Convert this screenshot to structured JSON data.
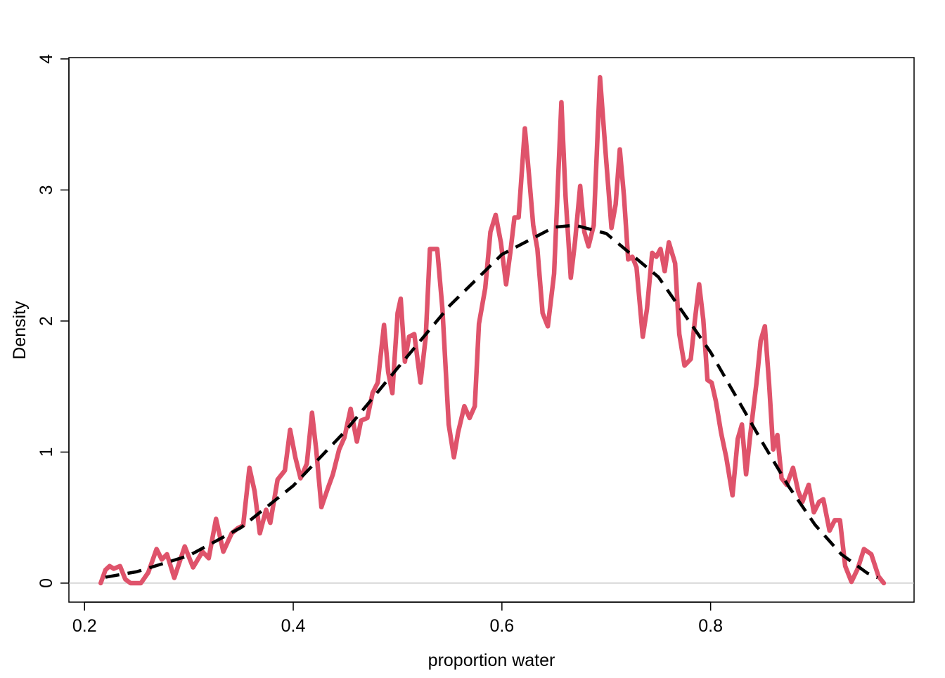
{
  "chart_data": {
    "type": "line",
    "xlabel": "proportion water",
    "ylabel": "Density",
    "xlim": [
      0.185,
      0.995
    ],
    "ylim": [
      -0.145,
      4.01
    ],
    "xticks": [
      0.2,
      0.4,
      0.6,
      0.8
    ],
    "yticks": [
      0,
      1,
      2,
      3,
      4
    ],
    "zero_line": true,
    "series": [
      {
        "color": "#DF536B",
        "dashed": false,
        "x": [
          0.2155,
          0.22,
          0.224,
          0.228,
          0.234,
          0.239,
          0.244,
          0.254,
          0.261,
          0.269,
          0.274,
          0.279,
          0.286,
          0.296,
          0.304,
          0.313,
          0.319,
          0.326,
          0.333,
          0.341,
          0.347,
          0.352,
          0.358,
          0.363,
          0.368,
          0.374,
          0.378,
          0.385,
          0.392,
          0.397,
          0.402,
          0.407,
          0.413,
          0.418,
          0.422,
          0.427,
          0.433,
          0.438,
          0.444,
          0.449,
          0.455,
          0.461,
          0.465,
          0.471,
          0.476,
          0.481,
          0.487,
          0.491,
          0.495,
          0.5,
          0.503,
          0.507,
          0.511,
          0.516,
          0.522,
          0.527,
          0.531,
          0.538,
          0.543,
          0.549,
          0.554,
          0.558,
          0.564,
          0.569,
          0.574,
          0.578,
          0.584,
          0.589,
          0.594,
          0.599,
          0.604,
          0.608,
          0.612,
          0.616,
          0.622,
          0.626,
          0.63,
          0.634,
          0.639,
          0.644,
          0.65,
          0.657,
          0.661,
          0.666,
          0.67,
          0.675,
          0.679,
          0.683,
          0.688,
          0.694,
          0.7,
          0.705,
          0.709,
          0.713,
          0.717,
          0.721,
          0.725,
          0.729,
          0.735,
          0.739,
          0.744,
          0.748,
          0.752,
          0.756,
          0.76,
          0.766,
          0.77,
          0.775,
          0.781,
          0.785,
          0.789,
          0.793,
          0.797,
          0.801,
          0.805,
          0.81,
          0.815,
          0.821,
          0.826,
          0.83,
          0.834,
          0.838,
          0.844,
          0.848,
          0.852,
          0.856,
          0.86,
          0.864,
          0.868,
          0.873,
          0.879,
          0.884,
          0.888,
          0.894,
          0.899,
          0.904,
          0.908,
          0.914,
          0.919,
          0.924,
          0.929,
          0.935,
          0.941,
          0.947,
          0.954,
          0.961,
          0.966
        ],
        "values": [
          0,
          0.1,
          0.13,
          0.11,
          0.13,
          0.03,
          0,
          0,
          0.08,
          0.26,
          0.18,
          0.22,
          0.04,
          0.28,
          0.12,
          0.24,
          0.19,
          0.49,
          0.24,
          0.38,
          0.42,
          0.44,
          0.88,
          0.7,
          0.38,
          0.56,
          0.46,
          0.79,
          0.86,
          1.17,
          0.96,
          0.8,
          0.91,
          1.3,
          1.02,
          0.58,
          0.72,
          0.83,
          1.02,
          1.11,
          1.33,
          1.08,
          1.24,
          1.26,
          1.45,
          1.53,
          1.97,
          1.61,
          1.45,
          2.06,
          2.17,
          1.69,
          1.88,
          1.9,
          1.53,
          1.88,
          2.55,
          2.55,
          2.09,
          1.21,
          0.96,
          1.15,
          1.35,
          1.26,
          1.35,
          1.98,
          2.25,
          2.68,
          2.81,
          2.6,
          2.28,
          2.52,
          2.79,
          2.79,
          3.47,
          3.11,
          2.73,
          2.55,
          2.06,
          1.96,
          2.36,
          3.67,
          2.95,
          2.33,
          2.6,
          3.03,
          2.68,
          2.57,
          2.73,
          3.86,
          3.22,
          2.71,
          2.89,
          3.31,
          2.95,
          2.47,
          2.49,
          2.41,
          1.88,
          2.09,
          2.52,
          2.49,
          2.55,
          2.38,
          2.6,
          2.44,
          1.9,
          1.66,
          1.71,
          2.01,
          2.28,
          2.01,
          1.55,
          1.53,
          1.39,
          1.15,
          0.96,
          0.67,
          1.1,
          1.21,
          0.83,
          1.13,
          1.53,
          1.85,
          1.96,
          1.53,
          1.02,
          1.13,
          0.8,
          0.75,
          0.88,
          0.7,
          0.62,
          0.75,
          0.54,
          0.62,
          0.64,
          0.4,
          0.48,
          0.48,
          0.13,
          0.01,
          0.11,
          0.26,
          0.22,
          0.05,
          0
        ]
      },
      {
        "color": "#000000",
        "dashed": true,
        "x": [
          0.22,
          0.25,
          0.3,
          0.35,
          0.4,
          0.45,
          0.5,
          0.55,
          0.6,
          0.65,
          0.67,
          0.7,
          0.75,
          0.8,
          0.85,
          0.875,
          0.9,
          0.925,
          0.95,
          0.96
        ],
        "values": [
          0.045,
          0.087,
          0.21,
          0.424,
          0.743,
          1.161,
          1.641,
          2.118,
          2.508,
          2.716,
          2.731,
          2.668,
          2.336,
          1.762,
          1.069,
          0.736,
          0.446,
          0.222,
          0.077,
          0.042
        ]
      }
    ]
  }
}
